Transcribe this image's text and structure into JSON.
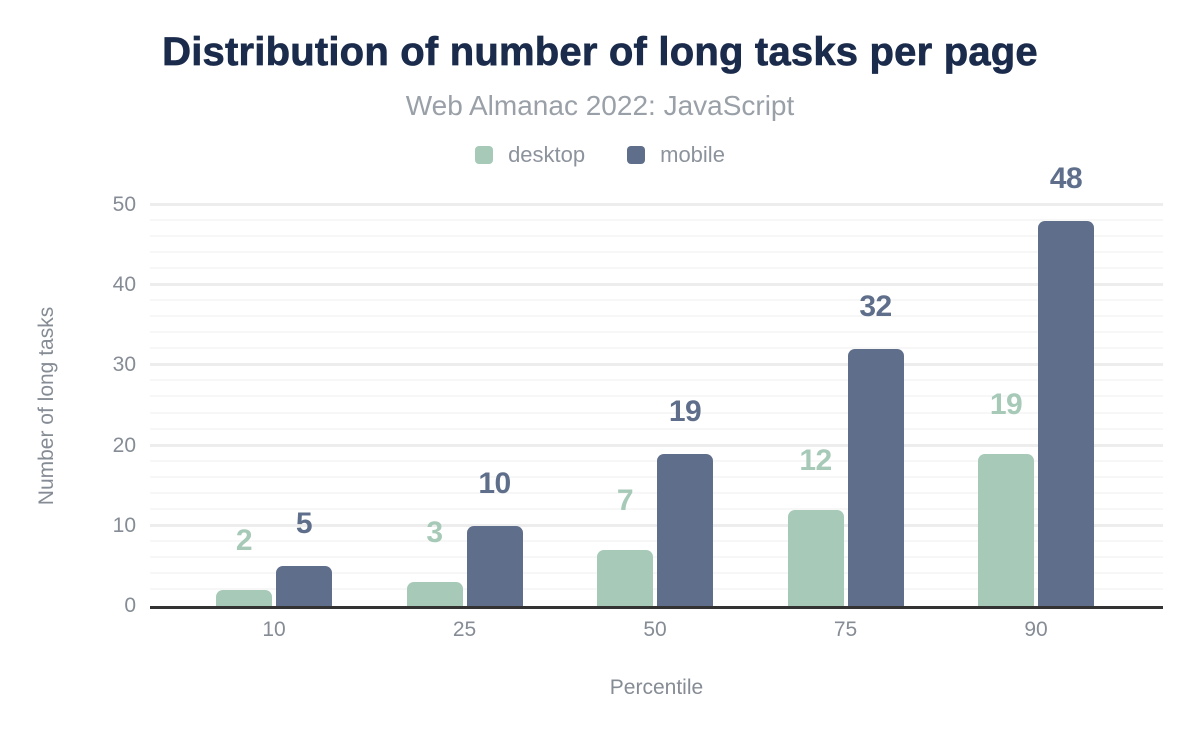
{
  "header": {
    "title": "Distribution of number of long tasks per page",
    "subtitle": "Web Almanac 2022: JavaScript"
  },
  "chart_data": {
    "type": "bar",
    "title": "Distribution of number of long tasks per page",
    "subtitle": "Web Almanac 2022: JavaScript",
    "categories": [
      "10",
      "25",
      "50",
      "75",
      "90"
    ],
    "series": [
      {
        "name": "desktop",
        "color": "#a6c9b8",
        "values": [
          2,
          3,
          7,
          12,
          19
        ]
      },
      {
        "name": "mobile",
        "color": "#5f6e8a",
        "values": [
          5,
          10,
          19,
          32,
          48
        ]
      }
    ],
    "xlabel": "Percentile",
    "ylabel": "Number of long tasks",
    "ylim": [
      0,
      50
    ],
    "yticks": [
      0,
      10,
      20,
      30,
      40,
      50
    ],
    "grid": {
      "minor_step": 2,
      "major_step": 10,
      "minor_color": "#f7f7f7",
      "major_color": "#ededed"
    },
    "legend_position": "top",
    "data_labels": true
  },
  "colors": {
    "title": "#1b2b4b",
    "subtitle": "#9aa0a8",
    "axis_text": "#868c95",
    "legend_text": "#8d939c",
    "axis_line": "#333333",
    "background": "#ffffff"
  }
}
